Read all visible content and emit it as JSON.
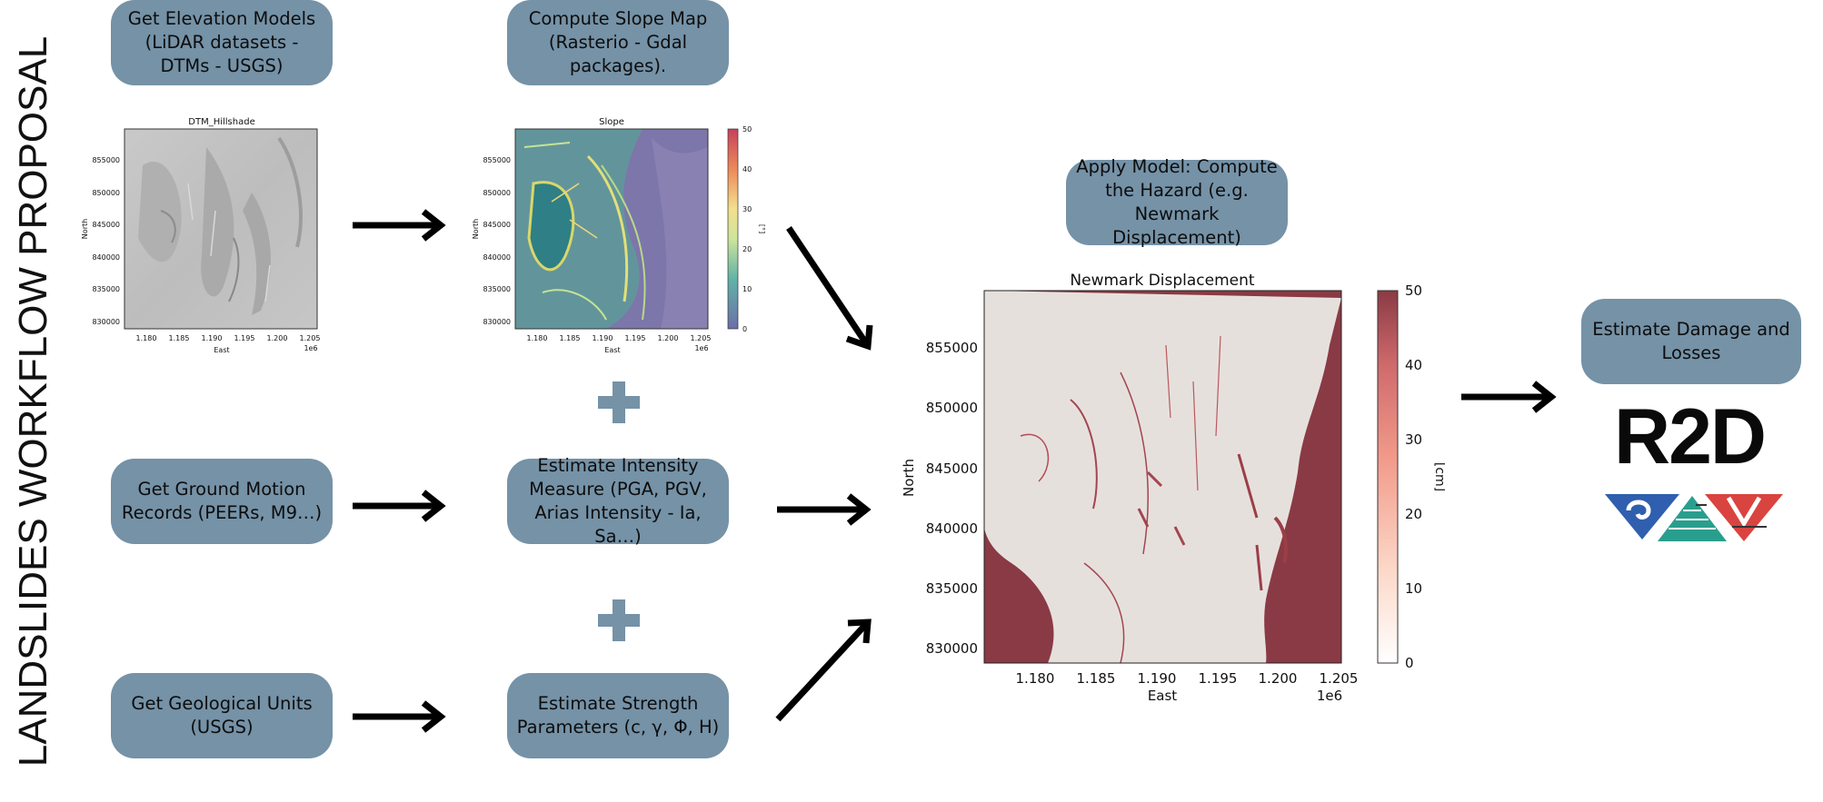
{
  "page_title": "LANDSLIDES WORKFLOW PROPOSAL",
  "steps": {
    "get_elevation": "Get Elevation Models (LiDAR datasets - DTMs - USGS)",
    "compute_slope": "Compute Slope Map (Rasterio - Gdal packages).",
    "get_ground_motion": "Get Ground Motion Records (PEERs, M9…)",
    "estimate_intensity": "Estimate Intensity Measure (PGA, PGV, Arias Intensity - Ia, Sa…)",
    "get_geological": "Get Geological Units (USGS)",
    "estimate_strength": "Estimate Strength Parameters (c, γ,  Φ, H)",
    "apply_model": "Apply Model: Compute the Hazard (e.g. Newmark Displacement)",
    "estimate_damage": "Estimate Damage and Losses"
  },
  "tool": {
    "label": "R2D"
  },
  "icons": {
    "plus_1": "plus-icon",
    "plus_2": "plus-icon",
    "logo": "simcenter-logo-icon"
  },
  "colors": {
    "step_box": "#7592a7",
    "arrow": "#000000",
    "plus": "#7592a7",
    "newmark_red": "#8a3a44"
  },
  "chart_data": [
    {
      "type": "heatmap",
      "title": "DTM_Hillshade",
      "xlabel": "East",
      "ylabel": "North",
      "x_ticks": [
        "1.180",
        "1.185",
        "1.190",
        "1.195",
        "1.200",
        "1.205"
      ],
      "x_multiplier": "1e6",
      "y_ticks": [
        "855000",
        "850000",
        "845000",
        "840000",
        "835000",
        "830000"
      ],
      "xlim": [
        1177000,
        1206000
      ],
      "ylim": [
        829000,
        859000
      ],
      "colormap": "gray"
    },
    {
      "type": "heatmap",
      "title": "Slope",
      "xlabel": "East",
      "ylabel": "North",
      "x_ticks": [
        "1.180",
        "1.185",
        "1.190",
        "1.195",
        "1.200",
        "1.205"
      ],
      "x_multiplier": "1e6",
      "y_ticks": [
        "855000",
        "850000",
        "845000",
        "840000",
        "835000",
        "830000"
      ],
      "xlim": [
        1177000,
        1206000
      ],
      "ylim": [
        829000,
        859000
      ],
      "colorbar": {
        "label": "[°]",
        "ticks": [
          "50",
          "40",
          "30",
          "20",
          "10",
          "0"
        ],
        "range": [
          0,
          50
        ]
      },
      "colormap": "spectral_r"
    },
    {
      "type": "heatmap",
      "title": "Newmark Displacement",
      "xlabel": "East",
      "ylabel": "North",
      "x_ticks": [
        "1.180",
        "1.185",
        "1.190",
        "1.195",
        "1.200",
        "1.205"
      ],
      "x_multiplier": "1e6",
      "y_ticks": [
        "855000",
        "850000",
        "845000",
        "840000",
        "835000",
        "830000"
      ],
      "xlim": [
        1177000,
        1206000
      ],
      "ylim": [
        829000,
        859000
      ],
      "colorbar": {
        "label": "[cm]",
        "ticks": [
          "50",
          "40",
          "30",
          "20",
          "10",
          "0"
        ],
        "range": [
          0,
          50
        ]
      },
      "colormap": "reds"
    }
  ]
}
